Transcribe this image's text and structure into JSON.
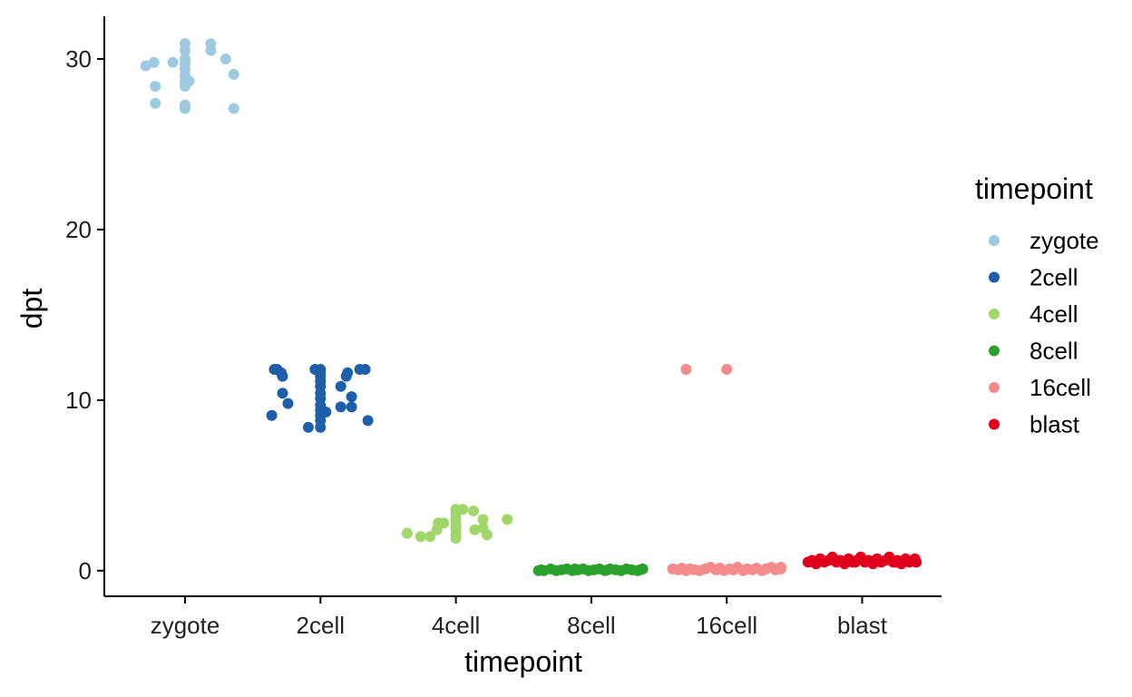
{
  "chart_data": {
    "type": "scatter",
    "title": "",
    "xlabel": "timepoint",
    "ylabel": "dpt",
    "categories": [
      "zygote",
      "2cell",
      "4cell",
      "8cell",
      "16cell",
      "blast"
    ],
    "ylim": [
      -1.5,
      32.5
    ],
    "yticks": [
      0,
      10,
      20,
      30
    ],
    "grid": false,
    "legend": {
      "title": "timepoint",
      "position": "right"
    },
    "series": [
      {
        "name": "zygote",
        "color": "#9ecae1",
        "points": [
          [
            -0.29,
            29.6
          ],
          [
            -0.23,
            29.8
          ],
          [
            -0.22,
            28.4
          ],
          [
            -0.22,
            27.4
          ],
          [
            -0.09,
            29.8
          ],
          [
            0.0,
            30.9
          ],
          [
            0.0,
            30.5
          ],
          [
            0.0,
            30.0
          ],
          [
            0.0,
            29.7
          ],
          [
            0.0,
            29.4
          ],
          [
            0.0,
            29.0
          ],
          [
            0.0,
            28.7
          ],
          [
            0.0,
            28.4
          ],
          [
            0.0,
            27.3
          ],
          [
            0.0,
            27.1
          ],
          [
            0.03,
            28.7
          ],
          [
            0.19,
            30.9
          ],
          [
            0.19,
            30.5
          ],
          [
            0.3,
            30.0
          ],
          [
            0.36,
            29.1
          ],
          [
            0.36,
            27.1
          ]
        ]
      },
      {
        "name": "2cell",
        "color": "#1f5ea8",
        "points": [
          [
            -0.36,
            9.1
          ],
          [
            -0.34,
            11.8
          ],
          [
            -0.32,
            11.8
          ],
          [
            -0.29,
            11.6
          ],
          [
            -0.28,
            11.4
          ],
          [
            -0.28,
            10.4
          ],
          [
            -0.24,
            9.8
          ],
          [
            -0.09,
            8.4
          ],
          [
            -0.04,
            11.8
          ],
          [
            0.0,
            11.8
          ],
          [
            0.0,
            11.6
          ],
          [
            0.0,
            11.4
          ],
          [
            0.0,
            11.1
          ],
          [
            0.0,
            10.8
          ],
          [
            0.0,
            10.4
          ],
          [
            0.0,
            10.1
          ],
          [
            0.0,
            9.7
          ],
          [
            0.0,
            9.4
          ],
          [
            0.0,
            9.1
          ],
          [
            0.0,
            8.8
          ],
          [
            0.0,
            8.4
          ],
          [
            0.04,
            9.3
          ],
          [
            0.15,
            10.8
          ],
          [
            0.15,
            9.6
          ],
          [
            0.19,
            11.4
          ],
          [
            0.2,
            11.6
          ],
          [
            0.23,
            10.2
          ],
          [
            0.23,
            9.6
          ],
          [
            0.29,
            11.8
          ],
          [
            0.33,
            11.8
          ],
          [
            0.35,
            8.8
          ]
        ]
      },
      {
        "name": "4cell",
        "color": "#a1d76a",
        "points": [
          [
            -0.36,
            2.2
          ],
          [
            -0.26,
            2.0
          ],
          [
            -0.19,
            2.0
          ],
          [
            -0.14,
            2.4
          ],
          [
            -0.13,
            2.8
          ],
          [
            -0.09,
            2.8
          ],
          [
            0.0,
            3.6
          ],
          [
            0.0,
            3.3
          ],
          [
            0.0,
            3.0
          ],
          [
            0.0,
            2.7
          ],
          [
            0.0,
            2.4
          ],
          [
            0.0,
            2.1
          ],
          [
            0.0,
            1.9
          ],
          [
            0.05,
            3.6
          ],
          [
            0.13,
            3.5
          ],
          [
            0.14,
            2.4
          ],
          [
            0.2,
            3.0
          ],
          [
            0.2,
            2.5
          ],
          [
            0.23,
            2.1
          ],
          [
            0.38,
            3.0
          ]
        ]
      },
      {
        "name": "8cell",
        "color": "#2ca02c",
        "points": [
          [
            -0.39,
            0.0
          ],
          [
            -0.35,
            0.0
          ],
          [
            -0.3,
            0.1
          ],
          [
            -0.26,
            0.0
          ],
          [
            -0.22,
            0.05
          ],
          [
            -0.18,
            0.1
          ],
          [
            -0.14,
            0.0
          ],
          [
            -0.1,
            0.05
          ],
          [
            -0.06,
            0.1
          ],
          [
            -0.02,
            0.0
          ],
          [
            0.02,
            0.05
          ],
          [
            0.06,
            0.1
          ],
          [
            0.1,
            0.0
          ],
          [
            0.14,
            0.1
          ],
          [
            0.18,
            0.05
          ],
          [
            0.22,
            0.0
          ],
          [
            0.26,
            0.1
          ],
          [
            0.3,
            0.05
          ],
          [
            0.34,
            0.0
          ],
          [
            0.38,
            0.1
          ],
          [
            -0.37,
            0.05
          ],
          [
            -0.12,
            0.1
          ],
          [
            0.12,
            0.05
          ],
          [
            0.36,
            0.05
          ]
        ]
      },
      {
        "name": "16cell",
        "color": "#f28b8b",
        "points": [
          [
            -0.3,
            11.8
          ],
          [
            0.0,
            11.8
          ],
          [
            -0.4,
            0.1
          ],
          [
            -0.36,
            0.05
          ],
          [
            -0.33,
            0.15
          ],
          [
            -0.3,
            0.0
          ],
          [
            -0.27,
            0.1
          ],
          [
            -0.24,
            0.05
          ],
          [
            -0.2,
            0.0
          ],
          [
            -0.16,
            0.1
          ],
          [
            -0.12,
            0.2
          ],
          [
            -0.08,
            0.05
          ],
          [
            -0.05,
            0.15
          ],
          [
            -0.02,
            0.0
          ],
          [
            0.02,
            0.1
          ],
          [
            0.05,
            0.05
          ],
          [
            0.08,
            0.2
          ],
          [
            0.12,
            0.0
          ],
          [
            0.15,
            0.1
          ],
          [
            0.19,
            0.05
          ],
          [
            0.22,
            0.15
          ],
          [
            0.26,
            0.0
          ],
          [
            0.29,
            0.1
          ],
          [
            0.33,
            0.2
          ],
          [
            0.36,
            0.05
          ],
          [
            0.4,
            0.1
          ],
          [
            0.4,
            0.2
          ]
        ]
      },
      {
        "name": "blast",
        "color": "#e0001b",
        "points": [
          [
            -0.4,
            0.5
          ],
          [
            -0.37,
            0.6
          ],
          [
            -0.34,
            0.4
          ],
          [
            -0.31,
            0.7
          ],
          [
            -0.28,
            0.5
          ],
          [
            -0.25,
            0.6
          ],
          [
            -0.22,
            0.8
          ],
          [
            -0.19,
            0.5
          ],
          [
            -0.16,
            0.6
          ],
          [
            -0.13,
            0.4
          ],
          [
            -0.1,
            0.7
          ],
          [
            -0.07,
            0.5
          ],
          [
            -0.04,
            0.6
          ],
          [
            -0.01,
            0.8
          ],
          [
            0.02,
            0.5
          ],
          [
            0.05,
            0.6
          ],
          [
            0.08,
            0.4
          ],
          [
            0.11,
            0.7
          ],
          [
            0.14,
            0.5
          ],
          [
            0.17,
            0.6
          ],
          [
            0.2,
            0.8
          ],
          [
            0.23,
            0.5
          ],
          [
            0.26,
            0.6
          ],
          [
            0.29,
            0.4
          ],
          [
            0.32,
            0.7
          ],
          [
            0.35,
            0.5
          ],
          [
            0.38,
            0.6
          ],
          [
            0.4,
            0.5
          ],
          [
            -0.36,
            0.5
          ],
          [
            -0.2,
            0.6
          ],
          [
            -0.05,
            0.5
          ],
          [
            0.1,
            0.6
          ],
          [
            0.25,
            0.5
          ],
          [
            0.39,
            0.7
          ]
        ]
      }
    ]
  }
}
